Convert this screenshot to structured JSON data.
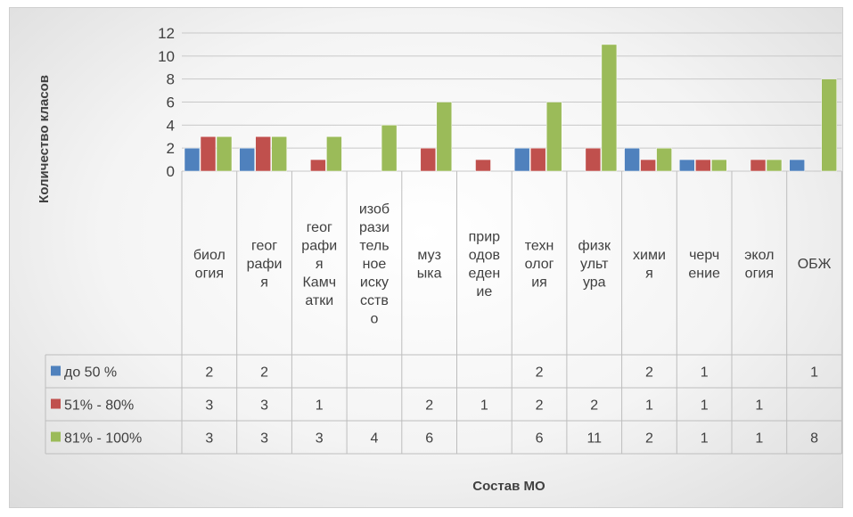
{
  "chart_data": {
    "type": "bar",
    "xlabel": "Состав МО",
    "ylabel": "Количество класов",
    "ylim": [
      0,
      12
    ],
    "yticks": [
      0,
      2,
      4,
      6,
      8,
      10,
      12
    ],
    "grid": true,
    "legend": "data-table-left",
    "categories": [
      [
        "биол",
        "огия"
      ],
      [
        "геог",
        "рафи",
        "я"
      ],
      [
        "геог",
        "рафи",
        "я",
        "Камч",
        "атки"
      ],
      [
        "изоб",
        "рази",
        "тель",
        "ное",
        "иску",
        "сств",
        "о"
      ],
      [
        "муз",
        "ыка"
      ],
      [
        "прир",
        "одов",
        "еден",
        "ие"
      ],
      [
        "техн",
        "олог",
        "ия"
      ],
      [
        "физк",
        "ульт",
        "ура"
      ],
      [
        "хими",
        "я"
      ],
      [
        "черч",
        "ение"
      ],
      [
        "экол",
        "огия"
      ],
      [
        "ОБЖ"
      ]
    ],
    "series": [
      {
        "name": "до 50 %",
        "color": "#4f81bd",
        "values": [
          2,
          2,
          null,
          null,
          null,
          null,
          2,
          null,
          2,
          1,
          null,
          1
        ]
      },
      {
        "name": "51% - 80%",
        "color": "#c0504d",
        "values": [
          3,
          3,
          1,
          null,
          2,
          1,
          2,
          2,
          1,
          1,
          1,
          null
        ]
      },
      {
        "name": "81% - 100%",
        "color": "#9bbb59",
        "values": [
          3,
          3,
          3,
          4,
          6,
          null,
          6,
          11,
          2,
          1,
          1,
          8
        ]
      }
    ]
  }
}
